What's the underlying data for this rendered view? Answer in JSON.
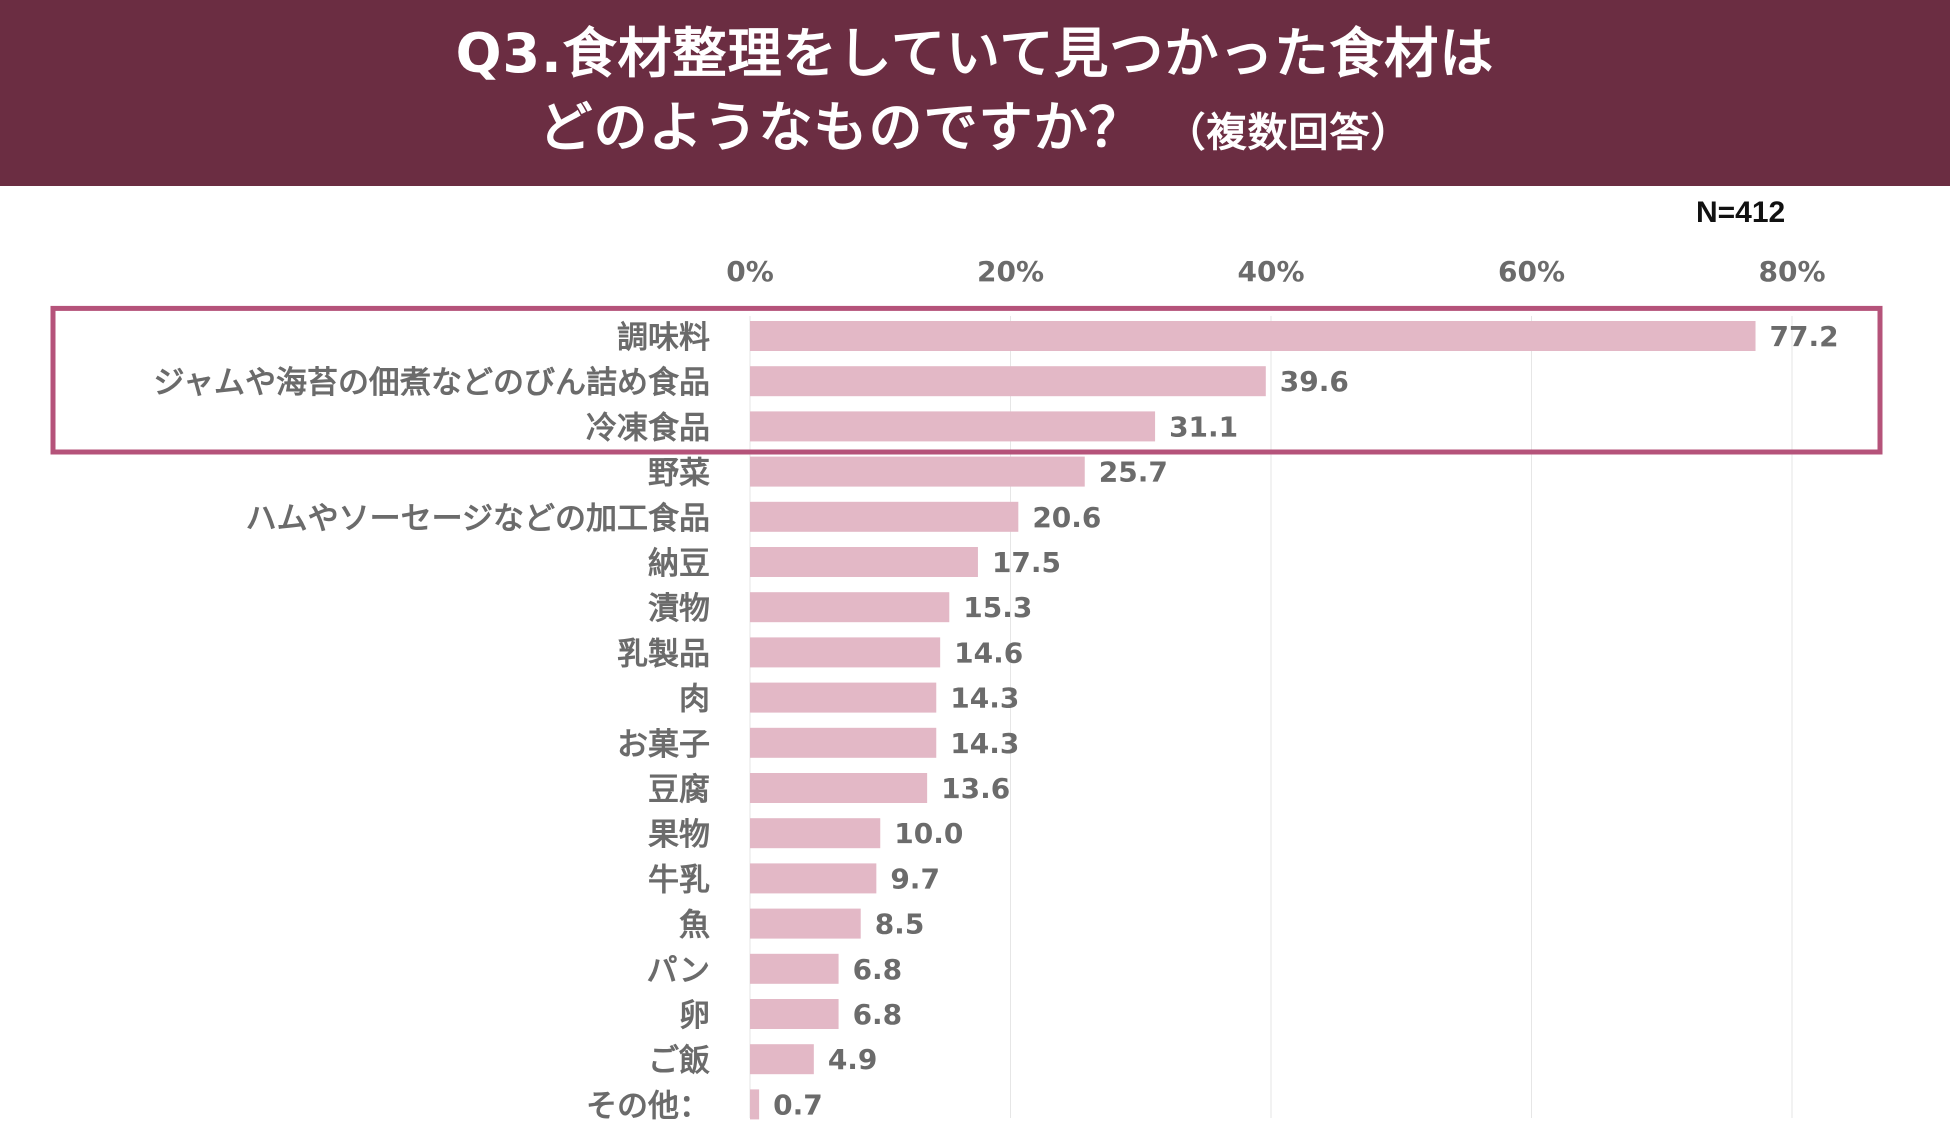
{
  "header": {
    "line1": "Q3.食材整理をしていて見つかった食材は",
    "line2": "どのようなものですか？",
    "line2_sub": "（複数回答）"
  },
  "sample_size": "N=412",
  "colors": {
    "banner": "#6b2d42",
    "bar": "#e3b8c6",
    "highlight_box": "#b5537a",
    "label_text": "#6b6b6b"
  },
  "chart_data": {
    "type": "bar",
    "orientation": "horizontal",
    "title": "Q3.食材整理をしていて見つかった食材はどのようなものですか？（複数回答）",
    "xlabel": "",
    "ylabel": "",
    "xlim": [
      0,
      80
    ],
    "ticks": [
      "0%",
      "20%",
      "40%",
      "60%",
      "80%"
    ],
    "tick_values": [
      0,
      20,
      40,
      60,
      80
    ],
    "grid": true,
    "categories": [
      "調味料",
      "ジャムや海苔の佃煮などのびん詰め食品",
      "冷凍食品",
      "野菜",
      "ハムやソーセージなどの加工食品",
      "納豆",
      "漬物",
      "乳製品",
      "肉",
      "お菓子",
      "豆腐",
      "果物",
      "牛乳",
      "魚",
      "パン",
      "卵",
      "ご飯",
      "その他："
    ],
    "values": [
      77.2,
      39.6,
      31.1,
      25.7,
      20.6,
      17.5,
      15.3,
      14.6,
      14.3,
      14.3,
      13.6,
      10.0,
      9.7,
      8.5,
      6.8,
      6.8,
      4.9,
      0.7
    ],
    "value_labels": [
      "77.2",
      "39.6",
      "31.1",
      "25.7",
      "20.6",
      "17.5",
      "15.3",
      "14.6",
      "14.3",
      "14.3",
      "13.6",
      "10.0",
      "9.7",
      "8.5",
      "6.8",
      "6.8",
      "4.9",
      "0.7"
    ],
    "highlighted_top_n": 3
  }
}
